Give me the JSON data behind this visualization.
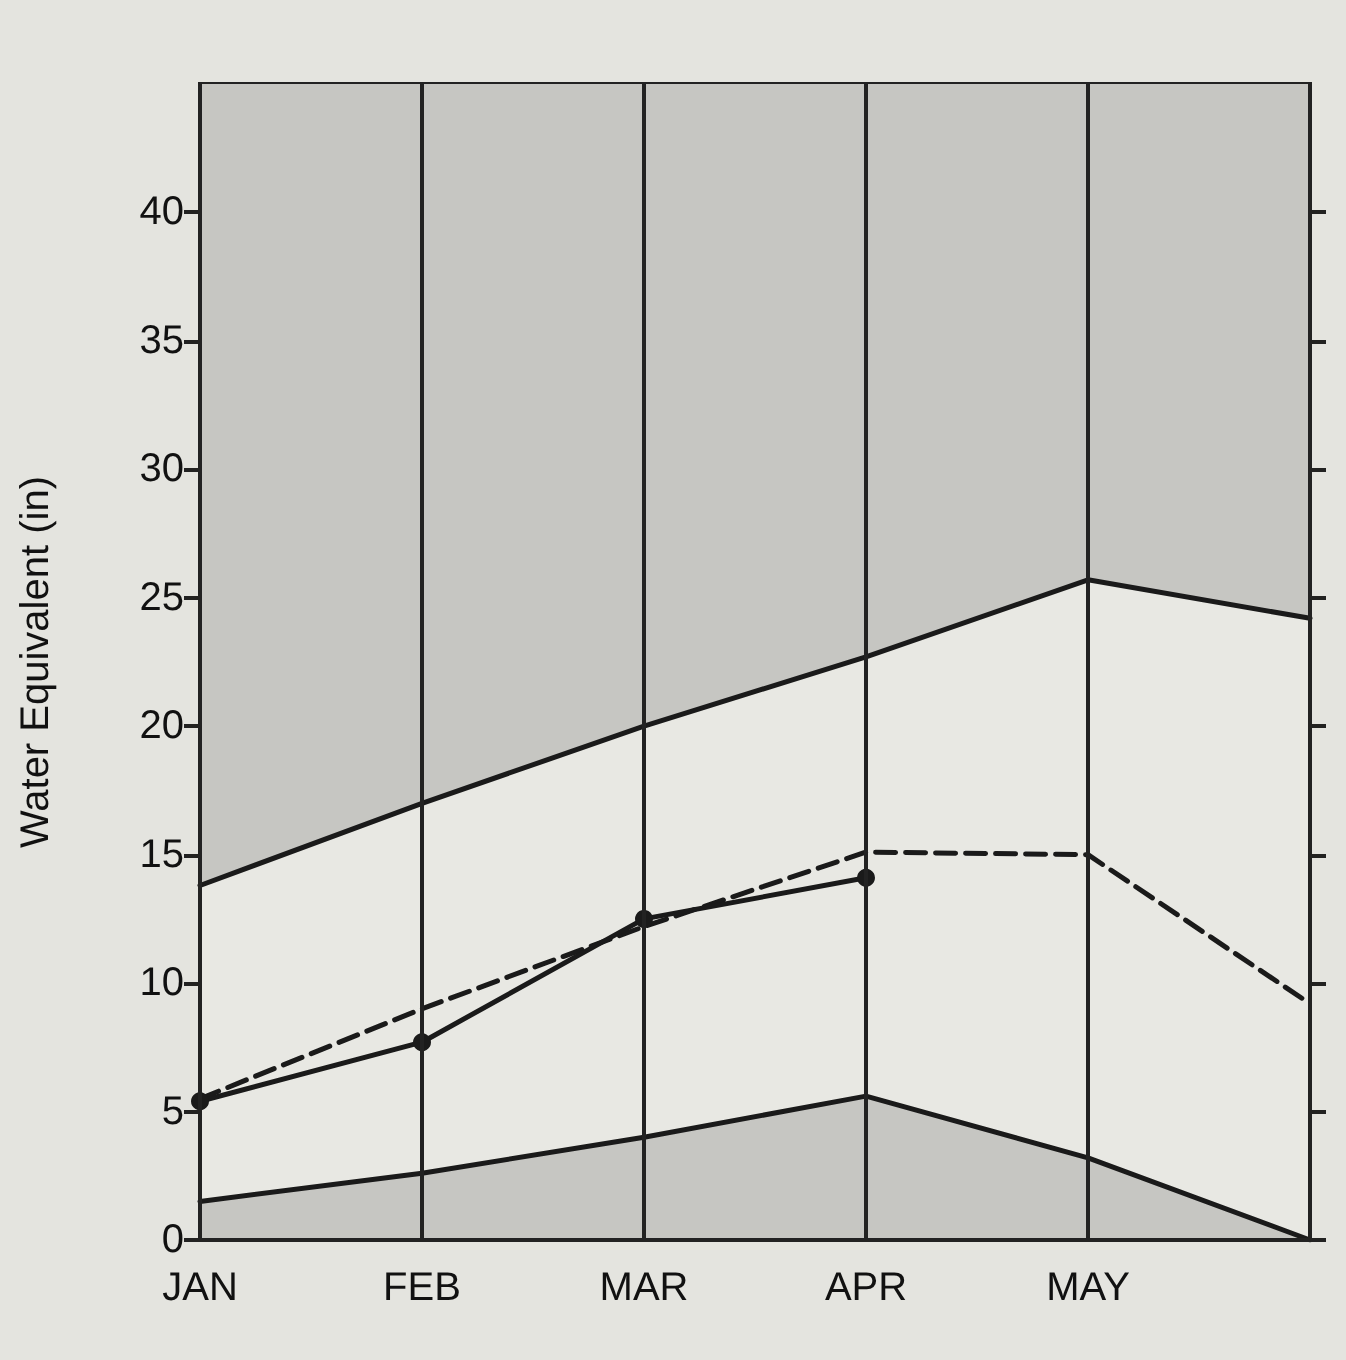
{
  "chart_data": {
    "type": "line",
    "ylabel": "Water Equivalent (in)",
    "categories": [
      "JAN",
      "FEB",
      "MAR",
      "APR",
      "MAY",
      null
    ],
    "ylim": [
      0,
      45
    ],
    "yticks": [
      0,
      5,
      10,
      15,
      20,
      25,
      30,
      35,
      40
    ],
    "grid": "x",
    "bands": [
      {
        "axis": "y",
        "from": 0,
        "to": 45,
        "color": "#c6c6c2"
      }
    ],
    "series": [
      {
        "type": "area",
        "color": "#e8e8e3",
        "values": [
          13.8,
          17,
          20,
          22.7,
          25.7,
          24.2
        ],
        "marker": "none",
        "line_style": "solid"
      },
      {
        "type": "area",
        "color": "#c6c6c2",
        "values": [
          1.5,
          2.6,
          4,
          5.6,
          3.2,
          0
        ],
        "marker": "none",
        "line_style": "solid"
      },
      {
        "color": "#1a1a1a",
        "values": [
          5.5,
          9,
          12.2,
          15.1,
          15,
          9.2
        ],
        "marker": "none",
        "line_style": "dashed"
      },
      {
        "color": "#1a1a1a",
        "values": [
          5.4,
          7.7,
          12.5,
          14.1,
          null,
          null
        ],
        "marker": "circle",
        "line_style": "solid"
      }
    ]
  }
}
